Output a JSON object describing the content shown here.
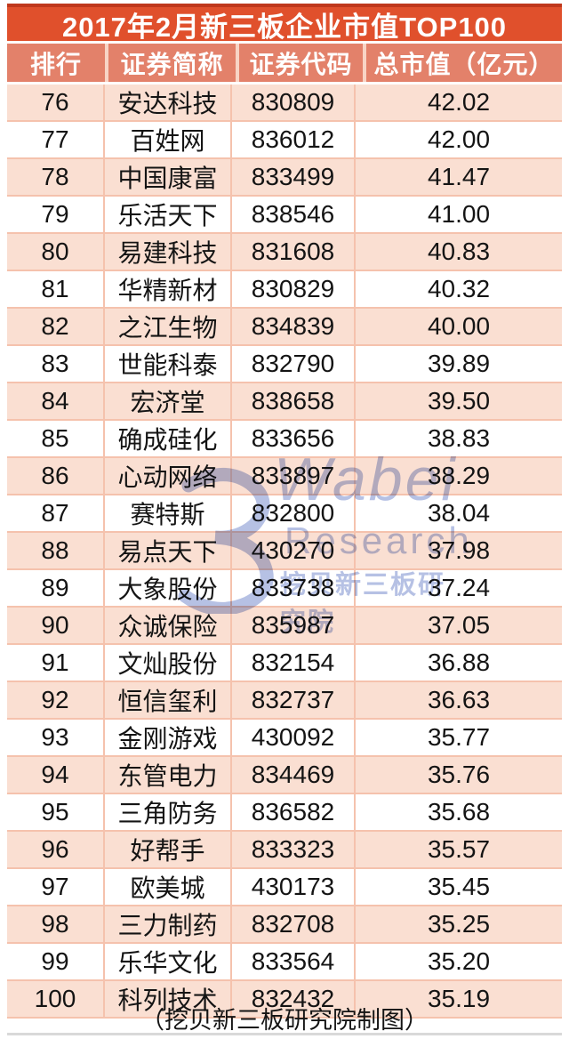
{
  "page": {
    "title": "2017年2月新三板企业市值TOP100",
    "footer": "（挖贝新三板研究院制图）"
  },
  "watermark": {
    "brand": "Wabei",
    "sub": "Research",
    "cn": "挖贝新三板研究院",
    "color": "#a9b6e0"
  },
  "colors": {
    "title_bg": "#e0502c",
    "title_border": "#bf381c",
    "header_bg": "#e3816a",
    "row_alt_bg": "#fadfd2",
    "row_bg": "#ffffff",
    "cell_border": "#f5c2ad",
    "text": "#141414",
    "header_text": "#ffffff"
  },
  "chart_data": {
    "type": "table",
    "title": "2017年2月新三板企业市值TOP100",
    "columns": [
      "排行",
      "证券简称",
      "证券代码",
      "总市值（亿元）"
    ],
    "column_keys": [
      "rank",
      "name",
      "code",
      "value"
    ],
    "rows": [
      [
        "76",
        "安达科技",
        "830809",
        "42.02"
      ],
      [
        "77",
        "百姓网",
        "836012",
        "42.00"
      ],
      [
        "78",
        "中国康富",
        "833499",
        "41.47"
      ],
      [
        "79",
        "乐活天下",
        "838546",
        "41.00"
      ],
      [
        "80",
        "易建科技",
        "831608",
        "40.83"
      ],
      [
        "81",
        "华精新材",
        "830829",
        "40.32"
      ],
      [
        "82",
        "之江生物",
        "834839",
        "40.00"
      ],
      [
        "83",
        "世能科泰",
        "832790",
        "39.89"
      ],
      [
        "84",
        "宏济堂",
        "838658",
        "39.50"
      ],
      [
        "85",
        "确成硅化",
        "833656",
        "38.83"
      ],
      [
        "86",
        "心动网络",
        "833897",
        "38.29"
      ],
      [
        "87",
        "赛特斯",
        "832800",
        "38.04"
      ],
      [
        "88",
        "易点天下",
        "430270",
        "37.98"
      ],
      [
        "89",
        "大象股份",
        "833738",
        "37.24"
      ],
      [
        "90",
        "众诚保险",
        "835987",
        "37.05"
      ],
      [
        "91",
        "文灿股份",
        "832154",
        "36.88"
      ],
      [
        "92",
        "恒信玺利",
        "832737",
        "36.63"
      ],
      [
        "93",
        "金刚游戏",
        "430092",
        "35.77"
      ],
      [
        "94",
        "东管电力",
        "834469",
        "35.76"
      ],
      [
        "95",
        "三角防务",
        "836582",
        "35.68"
      ],
      [
        "96",
        "好帮手",
        "833323",
        "35.57"
      ],
      [
        "97",
        "欧美城",
        "430173",
        "35.45"
      ],
      [
        "98",
        "三力制药",
        "832708",
        "35.25"
      ],
      [
        "99",
        "乐华文化",
        "833564",
        "35.20"
      ],
      [
        "100",
        "科列技术",
        "832432",
        "35.19"
      ]
    ]
  }
}
